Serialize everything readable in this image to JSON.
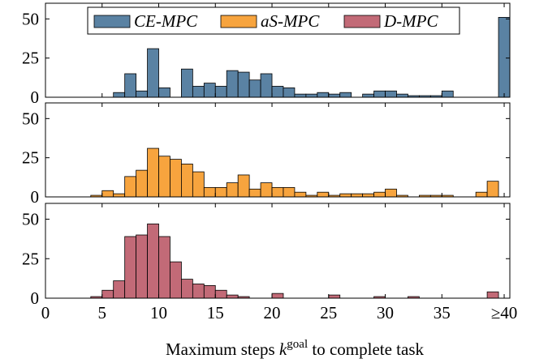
{
  "chart_data": {
    "type": "bar",
    "xlabel": "Maximum steps k^goal to complete task",
    "xlabel_parts": {
      "pre": "Maximum steps ",
      "var": "k",
      "sup": "goal",
      "post": " to complete task"
    },
    "x_ticks": [
      0,
      5,
      10,
      15,
      20,
      25,
      30,
      35,
      40
    ],
    "x_tick_labels": [
      "0",
      "5",
      "10",
      "15",
      "20",
      "25",
      "30",
      "35",
      "≥40"
    ],
    "y_ticks": [
      0,
      25,
      50
    ],
    "ylim": [
      0,
      60
    ],
    "bin_width": 1,
    "legend": {
      "placement": "top-center",
      "entries": [
        "CE-MPC",
        "aS-MPC",
        "D-MPC"
      ]
    },
    "series": [
      {
        "name": "CE-MPC",
        "color": "#5a82a3",
        "bins": [
          {
            "x": 6,
            "v": 3
          },
          {
            "x": 7,
            "v": 15
          },
          {
            "x": 8,
            "v": 4
          },
          {
            "x": 9,
            "v": 31
          },
          {
            "x": 10,
            "v": 6
          },
          {
            "x": 12,
            "v": 18
          },
          {
            "x": 13,
            "v": 7
          },
          {
            "x": 14,
            "v": 9
          },
          {
            "x": 15,
            "v": 7
          },
          {
            "x": 16,
            "v": 17
          },
          {
            "x": 17,
            "v": 16
          },
          {
            "x": 18,
            "v": 11
          },
          {
            "x": 19,
            "v": 15
          },
          {
            "x": 20,
            "v": 7
          },
          {
            "x": 21,
            "v": 6
          },
          {
            "x": 22,
            "v": 2
          },
          {
            "x": 23,
            "v": 2
          },
          {
            "x": 24,
            "v": 3
          },
          {
            "x": 25,
            "v": 2
          },
          {
            "x": 26,
            "v": 3
          },
          {
            "x": 28,
            "v": 2
          },
          {
            "x": 29,
            "v": 4
          },
          {
            "x": 30,
            "v": 4
          },
          {
            "x": 31,
            "v": 2
          },
          {
            "x": 32,
            "v": 1
          },
          {
            "x": 33,
            "v": 1
          },
          {
            "x": 34,
            "v": 1
          },
          {
            "x": 35,
            "v": 4
          },
          {
            "x": 40,
            "v": 51
          }
        ]
      },
      {
        "name": "aS-MPC",
        "color": "#f7a43e",
        "bins": [
          {
            "x": 4,
            "v": 1
          },
          {
            "x": 5,
            "v": 4
          },
          {
            "x": 6,
            "v": 2
          },
          {
            "x": 7,
            "v": 13
          },
          {
            "x": 8,
            "v": 17
          },
          {
            "x": 9,
            "v": 31
          },
          {
            "x": 10,
            "v": 26
          },
          {
            "x": 11,
            "v": 24
          },
          {
            "x": 12,
            "v": 21
          },
          {
            "x": 13,
            "v": 16
          },
          {
            "x": 14,
            "v": 6
          },
          {
            "x": 15,
            "v": 6
          },
          {
            "x": 16,
            "v": 9
          },
          {
            "x": 17,
            "v": 14
          },
          {
            "x": 18,
            "v": 5
          },
          {
            "x": 19,
            "v": 9
          },
          {
            "x": 20,
            "v": 6
          },
          {
            "x": 21,
            "v": 6
          },
          {
            "x": 22,
            "v": 3
          },
          {
            "x": 23,
            "v": 1
          },
          {
            "x": 24,
            "v": 3
          },
          {
            "x": 25,
            "v": 1
          },
          {
            "x": 26,
            "v": 2
          },
          {
            "x": 27,
            "v": 2
          },
          {
            "x": 28,
            "v": 2
          },
          {
            "x": 29,
            "v": 3
          },
          {
            "x": 30,
            "v": 5
          },
          {
            "x": 31,
            "v": 1
          },
          {
            "x": 33,
            "v": 1
          },
          {
            "x": 34,
            "v": 1
          },
          {
            "x": 35,
            "v": 1
          },
          {
            "x": 38,
            "v": 3
          },
          {
            "x": 39,
            "v": 10
          }
        ]
      },
      {
        "name": "D-MPC",
        "color": "#c26a77",
        "bins": [
          {
            "x": 4,
            "v": 1
          },
          {
            "x": 5,
            "v": 5
          },
          {
            "x": 6,
            "v": 11
          },
          {
            "x": 7,
            "v": 39
          },
          {
            "x": 8,
            "v": 40
          },
          {
            "x": 9,
            "v": 47
          },
          {
            "x": 10,
            "v": 39
          },
          {
            "x": 11,
            "v": 23
          },
          {
            "x": 12,
            "v": 12
          },
          {
            "x": 13,
            "v": 9
          },
          {
            "x": 14,
            "v": 8
          },
          {
            "x": 15,
            "v": 5
          },
          {
            "x": 16,
            "v": 2
          },
          {
            "x": 17,
            "v": 1
          },
          {
            "x": 20,
            "v": 3
          },
          {
            "x": 25,
            "v": 2
          },
          {
            "x": 29,
            "v": 1
          },
          {
            "x": 32,
            "v": 1
          },
          {
            "x": 39,
            "v": 4
          }
        ]
      }
    ]
  }
}
